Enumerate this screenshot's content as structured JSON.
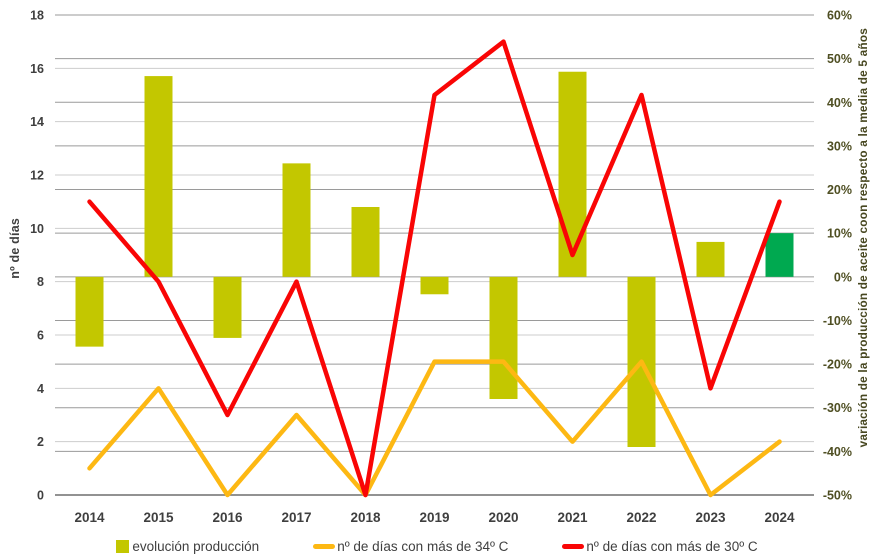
{
  "chart_data": {
    "type": "combo-bar-line",
    "title": "",
    "categories": [
      "2014",
      "2015",
      "2016",
      "2017",
      "2018",
      "2019",
      "2020",
      "2021",
      "2022",
      "2023",
      "2024"
    ],
    "series": [
      {
        "name": "evolución producción",
        "type": "bar",
        "axis": "right",
        "unit": "%",
        "values": [
          -16,
          46,
          -14,
          26,
          16,
          -4,
          -28,
          47,
          -39,
          8,
          10
        ],
        "color": "#c3c700",
        "highlight": {
          "category": "2024",
          "color": "#00a950"
        }
      },
      {
        "name": "nº de días con más de 34º C",
        "type": "line",
        "axis": "left",
        "unit": "días",
        "values": [
          1,
          4,
          0,
          3,
          0,
          5,
          5,
          2,
          5,
          0,
          2
        ],
        "color": "#fdb813"
      },
      {
        "name": "nº de días con más de 30º C",
        "type": "line",
        "axis": "left",
        "unit": "días",
        "values": [
          11,
          8,
          3,
          8,
          0,
          15,
          17,
          9,
          15,
          4,
          11
        ],
        "color": "#f90505"
      }
    ],
    "left_axis": {
      "title": "nº de días",
      "min": 0,
      "max": 18,
      "step": 2,
      "tick_labels": [
        "0",
        "2",
        "4",
        "6",
        "8",
        "10",
        "12",
        "14",
        "16",
        "18"
      ],
      "tick_color": "#3f3f3f"
    },
    "right_axis": {
      "title": "variación de la producción de aceite coon respecto a la media de 5 años",
      "min": -50,
      "max": 60,
      "step": 10,
      "tick_labels": [
        "-50%",
        "-40%",
        "-30%",
        "-20%",
        "-10%",
        "0%",
        "10%",
        "20%",
        "30%",
        "40%",
        "50%",
        "60%"
      ],
      "tick_color": "#4f4f23"
    },
    "x_axis": {
      "tick_color": "#3f3f3f"
    },
    "grid": {
      "day_line_color": "#cdcdcd",
      "pct_line_color": "#9a9a9a",
      "axis_line_color": "#6e6e6e"
    },
    "legend_position": "bottom"
  }
}
